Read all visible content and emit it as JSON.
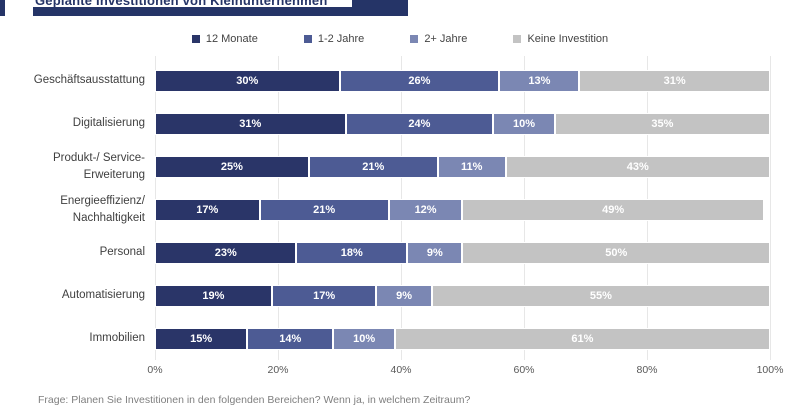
{
  "title": "Geplante Investitionen von Kleinunternehmen",
  "footer": "Frage: Planen Sie Investitionen in den folgenden Bereichen? Wenn ja, in welchem Zeitraum?",
  "accent_color": "#253467",
  "chart_data": {
    "type": "bar",
    "orientation": "horizontal",
    "stacked": true,
    "title": "Geplante Investitionen von Kleinunternehmen",
    "categories": [
      "Geschäftsausstattung",
      "Digitalisierung",
      "Produkt-/ Service-Erweiterung",
      "Energieeffizienz/ Nachhaltigkeit",
      "Personal",
      "Automatisierung",
      "Immobilien"
    ],
    "category_lines": [
      [
        "Geschäftsausstattung"
      ],
      [
        "Digitalisierung"
      ],
      [
        "Produkt-/ Service-",
        "Erweiterung"
      ],
      [
        "Energieeffizienz/",
        "Nachhaltigkeit"
      ],
      [
        "Personal"
      ],
      [
        "Automatisierung"
      ],
      [
        "Immobilien"
      ]
    ],
    "series": [
      {
        "name": "12 Monate",
        "color": "#2a3568",
        "values": [
          30,
          31,
          25,
          17,
          23,
          19,
          15
        ]
      },
      {
        "name": "1-2 Jahre",
        "color": "#4d5b94",
        "values": [
          26,
          24,
          21,
          21,
          18,
          17,
          14
        ]
      },
      {
        "name": "2+ Jahre",
        "color": "#7b87b3",
        "values": [
          13,
          10,
          11,
          12,
          9,
          9,
          10
        ]
      },
      {
        "name": "Keine Investition",
        "color": "#c3c3c3",
        "values": [
          31,
          35,
          43,
          49,
          50,
          55,
          61
        ]
      }
    ],
    "value_suffix": "%",
    "x_ticks": [
      "0%",
      "20%",
      "40%",
      "60%",
      "80%",
      "100%"
    ],
    "xlim": [
      0,
      100
    ],
    "grid": true,
    "gridline_color": "#e7e7e7",
    "legend_position": "top"
  }
}
